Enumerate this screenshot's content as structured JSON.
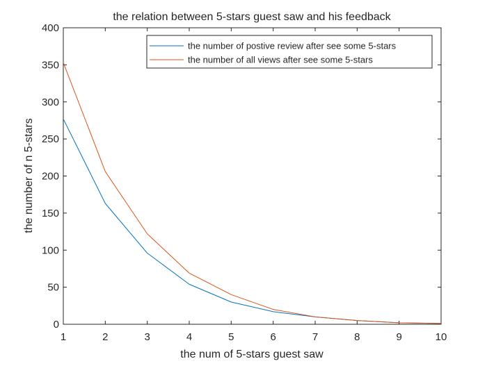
{
  "chart_data": {
    "type": "line",
    "title": "the relation between 5-stars guest saw and his feedback",
    "xlabel": "the num of 5-stars guest saw",
    "ylabel": "the number of n 5-stars",
    "xlim": [
      1,
      10
    ],
    "ylim": [
      0,
      400
    ],
    "xticks": [
      1,
      2,
      3,
      4,
      5,
      6,
      7,
      8,
      9,
      10
    ],
    "yticks": [
      0,
      50,
      100,
      150,
      200,
      250,
      300,
      350,
      400
    ],
    "grid": false,
    "legend_position": "top-right",
    "x": [
      1,
      2,
      3,
      4,
      5,
      6,
      7,
      8,
      9,
      10
    ],
    "series": [
      {
        "name": "the number of postive review after see some 5-stars",
        "color": "#0072BD",
        "values": [
          277,
          163,
          96,
          54,
          30,
          17,
          10,
          5,
          2,
          1
        ]
      },
      {
        "name": "the number of all views after see some 5-stars",
        "color": "#D95319",
        "values": [
          353,
          206,
          122,
          69,
          40,
          20,
          10,
          5,
          2,
          1
        ]
      }
    ]
  }
}
